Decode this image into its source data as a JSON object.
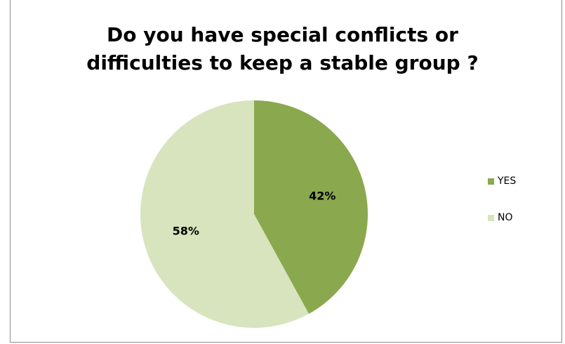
{
  "chart_data": {
    "type": "pie",
    "title_lines": [
      "Do you have special conflicts or",
      "difficulties to keep a stable group ?"
    ],
    "categories": [
      "YES",
      "NO"
    ],
    "values": [
      42,
      58
    ],
    "data_labels": [
      "42%",
      "58%"
    ],
    "colors": [
      "#8aa84e",
      "#d7e4bd"
    ],
    "legend_position": "right"
  }
}
